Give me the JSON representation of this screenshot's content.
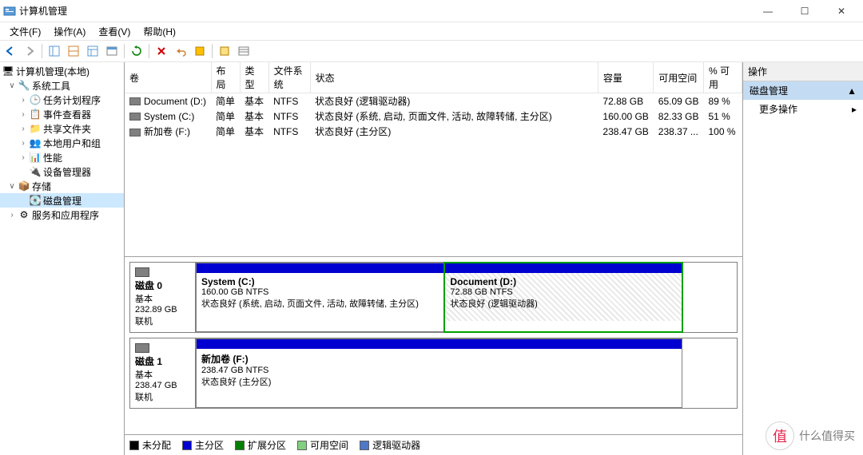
{
  "window": {
    "title": "计算机管理",
    "btn_min": "—",
    "btn_max": "☐",
    "btn_close": "✕"
  },
  "menubar": {
    "file": "文件(F)",
    "action": "操作(A)",
    "view": "查看(V)",
    "help": "帮助(H)"
  },
  "tree": {
    "root": "计算机管理(本地)",
    "sys_tools": "系统工具",
    "task_sched": "任务计划程序",
    "event_viewer": "事件查看器",
    "shared": "共享文件夹",
    "users": "本地用户和组",
    "perf": "性能",
    "devmgr": "设备管理器",
    "storage": "存储",
    "diskmgmt": "磁盘管理",
    "services": "服务和应用程序"
  },
  "volumes": {
    "cols": {
      "vol": "卷",
      "layout": "布局",
      "type": "类型",
      "fs": "文件系统",
      "status": "状态",
      "capacity": "容量",
      "free": "可用空间",
      "pct": "% 可用"
    },
    "rows": [
      {
        "vol": "Document (D:)",
        "layout": "简单",
        "type": "基本",
        "fs": "NTFS",
        "status": "状态良好 (逻辑驱动器)",
        "capacity": "72.88 GB",
        "free": "65.09 GB",
        "pct": "89 %"
      },
      {
        "vol": "System (C:)",
        "layout": "简单",
        "type": "基本",
        "fs": "NTFS",
        "status": "状态良好 (系统, 启动, 页面文件, 活动, 故障转储, 主分区)",
        "capacity": "160.00 GB",
        "free": "82.33 GB",
        "pct": "51 %"
      },
      {
        "vol": "新加卷 (F:)",
        "layout": "简单",
        "type": "基本",
        "fs": "NTFS",
        "status": "状态良好 (主分区)",
        "capacity": "238.47 GB",
        "free": "238.37 ...",
        "pct": "100 %"
      }
    ]
  },
  "disks": [
    {
      "name": "磁盘 0",
      "type": "基本",
      "size": "232.89 GB",
      "state": "联机",
      "parts": [
        {
          "title": "System  (C:)",
          "line2": "160.00 GB NTFS",
          "line3": "状态良好 (系统, 启动, 页面文件, 活动, 故障转储, 主分区)",
          "bar_color": "#0000d0",
          "width_pct": 46,
          "selected": false,
          "hatched": false
        },
        {
          "title": "Document  (D:)",
          "line2": "72.88 GB NTFS",
          "line3": "状态良好 (逻辑驱动器)",
          "bar_color": "#0000d0",
          "width_pct": 44,
          "selected": true,
          "hatched": true
        }
      ]
    },
    {
      "name": "磁盘 1",
      "type": "基本",
      "size": "238.47 GB",
      "state": "联机",
      "parts": [
        {
          "title": "新加卷  (F:)",
          "line2": "238.47 GB NTFS",
          "line3": "状态良好 (主分区)",
          "bar_color": "#0000d0",
          "width_pct": 90,
          "selected": false,
          "hatched": false
        }
      ]
    }
  ],
  "legend": {
    "unalloc": {
      "label": "未分配",
      "color": "#000000"
    },
    "primary": {
      "label": "主分区",
      "color": "#0000d0"
    },
    "extended": {
      "label": "扩展分区",
      "color": "#008000"
    },
    "free": {
      "label": "可用空间",
      "color": "#80d080"
    },
    "logical": {
      "label": "逻辑驱动器",
      "color": "#5078c8"
    }
  },
  "actions": {
    "header": "操作",
    "diskmgmt": "磁盘管理",
    "more": "更多操作",
    "arrow_up": "▲",
    "arrow_right": "▸"
  },
  "watermark": {
    "glyph": "值",
    "text": "什么值得买"
  }
}
